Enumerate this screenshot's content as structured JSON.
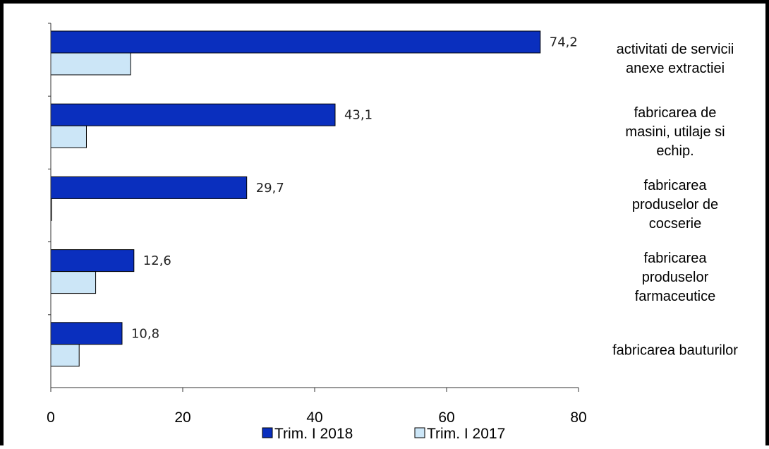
{
  "chart_data": {
    "type": "bar",
    "orientation": "horizontal",
    "categories": [
      [
        "activitati de servicii",
        "anexe extractiei"
      ],
      [
        "fabricarea de",
        "masini, utilaje si",
        "echip."
      ],
      [
        "fabricarea",
        "produselor de",
        "cocserie"
      ],
      [
        "fabricarea",
        "produselor",
        "farmaceutice"
      ],
      [
        "fabricarea bauturilor"
      ]
    ],
    "series": [
      {
        "name": "Trim. I 2018",
        "values": [
          74.2,
          43.1,
          29.7,
          12.6,
          10.8
        ],
        "labels": [
          "74,2",
          "43,1",
          "29,7",
          "12,6",
          "10,8"
        ],
        "color": "#0a2fbe"
      },
      {
        "name": "Trim. I 2017",
        "values": [
          12.1,
          5.4,
          0.1,
          6.8,
          4.3
        ],
        "color": "#cce6f7"
      }
    ],
    "xlim": [
      0,
      80
    ],
    "xticks": [
      0,
      20,
      40,
      60,
      80
    ],
    "grid": false,
    "legend": "bottom",
    "title": "",
    "xlabel": "",
    "ylabel": ""
  }
}
